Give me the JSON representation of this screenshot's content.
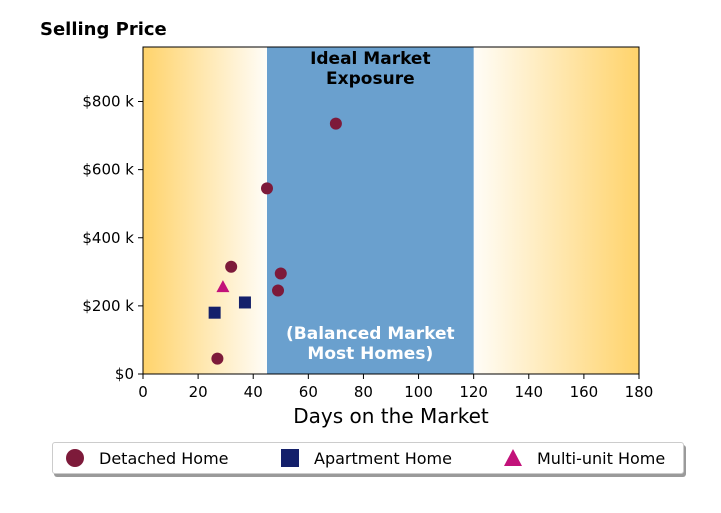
{
  "chart_data": {
    "type": "scatter",
    "title": "Selling Price",
    "xlabel": "Days on the Market",
    "ylabel": "",
    "xlim": [
      0,
      180
    ],
    "ylim": [
      0,
      960000
    ],
    "x_ticks": [
      0,
      20,
      40,
      60,
      80,
      100,
      120,
      140,
      160,
      180
    ],
    "x_tick_labels": [
      "0",
      "20",
      "40",
      "60",
      "80",
      "100",
      "120",
      "140",
      "160",
      "180"
    ],
    "y_ticks": [
      0,
      200000,
      400000,
      600000,
      800000
    ],
    "y_tick_labels": [
      "$0",
      "$200 k",
      "$400 k",
      "$600 k",
      "$800 k"
    ],
    "grid": false,
    "legend_position": "below",
    "background_band": {
      "x_start": 45,
      "x_end": 120,
      "color": "#6aa0ce",
      "label_top": "Ideal Market\nExposure",
      "label_bottom": "(Balanced Market\nMost Homes)"
    },
    "background_gradient_color": "#ffd36b",
    "series": [
      {
        "name": "Detached Home",
        "marker": "circle",
        "color": "#7d1a3a",
        "points": [
          {
            "x": 27,
            "y": 45000
          },
          {
            "x": 32,
            "y": 315000
          },
          {
            "x": 45,
            "y": 545000
          },
          {
            "x": 49,
            "y": 245000
          },
          {
            "x": 50,
            "y": 295000
          },
          {
            "x": 70,
            "y": 735000
          }
        ]
      },
      {
        "name": "Apartment Home",
        "marker": "square",
        "color": "#14206b",
        "points": [
          {
            "x": 26,
            "y": 180000
          },
          {
            "x": 37,
            "y": 210000
          }
        ]
      },
      {
        "name": "Multi-unit Home",
        "marker": "triangle",
        "color": "#c2127a",
        "points": [
          {
            "x": 29,
            "y": 255000
          }
        ]
      }
    ]
  }
}
